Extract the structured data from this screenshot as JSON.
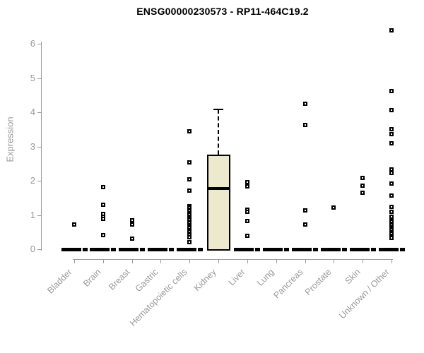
{
  "title": "ENSG00000230573 - RP11-464C19.2",
  "chart_data": {
    "type": "boxplot",
    "title": "ENSG00000230573 - RP11-464C19.2",
    "ylabel": "Expression",
    "ylim": [
      0,
      6.5
    ],
    "yticks": [
      "0",
      "1",
      "2",
      "3",
      "4",
      "5",
      "6"
    ],
    "grid": false,
    "legend": false,
    "categories": [
      "Bladder",
      "Brain",
      "Breast",
      "Gastric",
      "Hematopoietic cells",
      "Kidney",
      "Liver",
      "Lung",
      "Pancreas",
      "Prostate",
      "Skin",
      "Unknown / Other"
    ],
    "series": [
      {
        "category": "Bladder",
        "box": {
          "q1": 0,
          "median": 0,
          "q3": 0,
          "whisker_low": 0,
          "whisker_high": 0
        },
        "outliers": [
          0.72
        ]
      },
      {
        "category": "Brain",
        "box": {
          "q1": 0,
          "median": 0,
          "q3": 0,
          "whisker_low": 0,
          "whisker_high": 0
        },
        "outliers": [
          1.81,
          1.3,
          1.03,
          0.96,
          0.89,
          0.41
        ]
      },
      {
        "category": "Breast",
        "box": {
          "q1": 0,
          "median": 0,
          "q3": 0,
          "whisker_low": 0,
          "whisker_high": 0
        },
        "outliers": [
          0.85,
          0.72,
          0.3
        ]
      },
      {
        "category": "Gastric",
        "box": {
          "q1": 0,
          "median": 0,
          "q3": 0,
          "whisker_low": 0,
          "whisker_high": 0
        },
        "outliers": []
      },
      {
        "category": "Hematopoietic cells",
        "box": {
          "q1": 0,
          "median": 0,
          "q3": 0,
          "whisker_low": 0,
          "whisker_high": 0
        },
        "outliers": [
          3.44,
          2.54,
          2.04,
          1.71,
          1.26,
          1.21,
          1.16,
          1.11,
          1.06,
          1.01,
          0.96,
          0.91,
          0.86,
          0.81,
          0.76,
          0.71,
          0.66,
          0.61,
          0.56,
          0.51,
          0.46,
          0.41,
          0.36,
          0.21
        ]
      },
      {
        "category": "Kidney",
        "box": {
          "q1": 0,
          "median": 1.78,
          "q3": 2.76,
          "whisker_low": 0,
          "whisker_high": 4.08
        },
        "outliers": []
      },
      {
        "category": "Liver",
        "box": {
          "q1": 0,
          "median": 0,
          "q3": 0,
          "whisker_low": 0,
          "whisker_high": 0
        },
        "outliers": [
          1.97,
          1.83,
          1.15,
          1.1,
          0.83,
          0.39
        ]
      },
      {
        "category": "Lung",
        "box": {
          "q1": 0,
          "median": 0,
          "q3": 0,
          "whisker_low": 0,
          "whisker_high": 0
        },
        "outliers": []
      },
      {
        "category": "Pancreas",
        "box": {
          "q1": 0,
          "median": 0,
          "q3": 0,
          "whisker_low": 0,
          "whisker_high": 0
        },
        "outliers": [
          4.25,
          3.64,
          1.13,
          0.73
        ]
      },
      {
        "category": "Prostate",
        "box": {
          "q1": 0,
          "median": 0,
          "q3": 0,
          "whisker_low": 0,
          "whisker_high": 0
        },
        "outliers": [
          1.22
        ]
      },
      {
        "category": "Skin",
        "box": {
          "q1": 0,
          "median": 0,
          "q3": 0,
          "whisker_low": 0,
          "whisker_high": 0
        },
        "outliers": [
          2.09,
          1.85,
          1.66
        ]
      },
      {
        "category": "Unknown / Other",
        "box": {
          "q1": 0,
          "median": 0,
          "q3": 0,
          "whisker_low": 0,
          "whisker_high": 0
        },
        "outliers": [
          6.4,
          4.63,
          4.06,
          3.51,
          3.36,
          3.09,
          2.33,
          2.23,
          1.93,
          1.57,
          1.23,
          1.09,
          0.95,
          0.85,
          0.8,
          0.75,
          0.7,
          0.65,
          0.6,
          0.55,
          0.5,
          0.45,
          0.4,
          0.37,
          0.34
        ]
      }
    ],
    "colors": {
      "box_fill": "#EDE9CF",
      "box_border": "#000000",
      "median_line": "#000000",
      "marker": "#000000",
      "axis": "#999999",
      "tick_label": "#999999",
      "title": "#000000"
    }
  }
}
